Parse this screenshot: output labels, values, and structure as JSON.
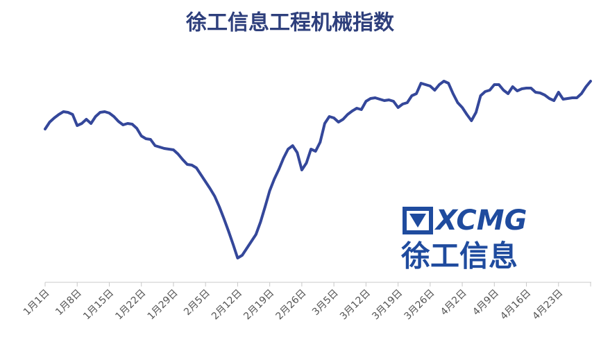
{
  "chart_data": {
    "type": "line",
    "title": "徐工信息工程机械指数",
    "categories": [
      "1月1日",
      null,
      null,
      null,
      null,
      null,
      null,
      "1月8日",
      null,
      null,
      null,
      null,
      null,
      null,
      "1月15日",
      null,
      null,
      null,
      null,
      null,
      null,
      "1月22日",
      null,
      null,
      null,
      null,
      null,
      null,
      "1月29日",
      null,
      null,
      null,
      null,
      null,
      null,
      "2月5日",
      null,
      null,
      null,
      null,
      null,
      null,
      "2月12日",
      null,
      null,
      null,
      null,
      null,
      null,
      "2月19日",
      null,
      null,
      null,
      null,
      null,
      null,
      "2月26日",
      null,
      null,
      null,
      null,
      null,
      null,
      "3月5日",
      null,
      null,
      null,
      null,
      null,
      null,
      "3月12日",
      null,
      null,
      null,
      null,
      null,
      null,
      "3月19日",
      null,
      null,
      null,
      null,
      null,
      null,
      "3月26日",
      null,
      null,
      null,
      null,
      null,
      null,
      "4月2日",
      null,
      null,
      null,
      null,
      null,
      null,
      "4月9日",
      null,
      null,
      null,
      null,
      null,
      null,
      "4月16日",
      null,
      null,
      null,
      null,
      null,
      null,
      "4月23日",
      null,
      null,
      null,
      null,
      null,
      null,
      null
    ],
    "values": [
      234,
      244,
      250,
      255,
      259,
      258,
      255,
      239,
      242,
      248,
      242,
      252,
      258,
      259,
      257,
      252,
      245,
      240,
      242,
      241,
      235,
      224,
      220,
      219,
      210,
      208,
      206,
      205,
      204,
      198,
      190,
      183,
      182,
      178,
      168,
      158,
      148,
      137,
      122,
      105,
      87,
      68,
      48,
      52,
      62,
      72,
      82,
      100,
      122,
      145,
      162,
      176,
      192,
      205,
      210,
      200,
      175,
      185,
      205,
      202,
      215,
      242,
      252,
      250,
      244,
      248,
      255,
      260,
      264,
      262,
      274,
      278,
      279,
      277,
      275,
      276,
      274,
      265,
      270,
      272,
      282,
      285,
      300,
      298,
      296,
      290,
      298,
      303,
      300,
      285,
      272,
      265,
      255,
      246,
      258,
      282,
      288,
      290,
      298,
      298,
      290,
      285,
      295,
      289,
      292,
      293,
      293,
      287,
      286,
      283,
      278,
      275,
      287,
      277,
      278,
      279,
      279,
      285,
      295,
      303
    ],
    "color": "#34479a",
    "ylim": [
      0,
      340
    ],
    "annotations": [
      "XCMG",
      "徐工信息"
    ]
  }
}
